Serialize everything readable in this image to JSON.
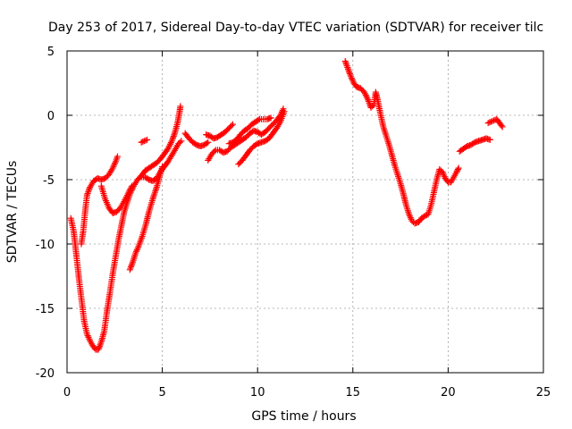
{
  "chart_data": {
    "type": "scatter",
    "title": "Day 253 of 2017, Sidereal Day-to-day VTEC variation (SDTVAR) for receiver tilc",
    "xlabel": "GPS time / hours",
    "ylabel": "SDTVAR / TECUs",
    "xlim": [
      0,
      25
    ],
    "ylim": [
      -20,
      5
    ],
    "xticks": [
      0,
      5,
      10,
      15,
      20,
      25
    ],
    "yticks": [
      -20,
      -15,
      -10,
      -5,
      0,
      5
    ],
    "grid": true,
    "marker": "+",
    "color": "#ff0000",
    "series": [
      {
        "points": [
          [
            0.2,
            -8
          ],
          [
            0.35,
            -9
          ],
          [
            0.5,
            -11
          ],
          [
            0.65,
            -13
          ],
          [
            0.8,
            -14.8
          ],
          [
            0.9,
            -16
          ],
          [
            1.05,
            -17
          ],
          [
            1.2,
            -17.5
          ],
          [
            1.35,
            -17.9
          ],
          [
            1.5,
            -18.2
          ],
          [
            1.65,
            -18.2
          ],
          [
            1.8,
            -17.6
          ],
          [
            1.95,
            -16.8
          ],
          [
            2.1,
            -15.2
          ],
          [
            2.25,
            -13.8
          ],
          [
            2.4,
            -12.3
          ],
          [
            2.55,
            -11
          ],
          [
            2.7,
            -9.7
          ],
          [
            2.85,
            -8.6
          ],
          [
            3,
            -7.5
          ],
          [
            3.15,
            -6.8
          ],
          [
            3.3,
            -6.1
          ],
          [
            3.5,
            -5.5
          ],
          [
            3.7,
            -5
          ],
          [
            3.9,
            -4.7
          ],
          [
            4.1,
            -4.3
          ],
          [
            4.3,
            -4.1
          ],
          [
            4.5,
            -3.9
          ],
          [
            4.7,
            -3.7
          ],
          [
            4.9,
            -3.4
          ],
          [
            5.1,
            -3
          ],
          [
            5.3,
            -2.6
          ],
          [
            5.5,
            -2
          ],
          [
            5.65,
            -1.4
          ],
          [
            5.8,
            -0.6
          ],
          [
            5.9,
            0.2
          ],
          [
            5.95,
            0.7
          ]
        ]
      },
      {
        "points": [
          [
            0.75,
            -10
          ],
          [
            0.85,
            -9
          ],
          [
            0.95,
            -7.5
          ],
          [
            1.05,
            -6.2
          ],
          [
            1.2,
            -5.6
          ],
          [
            1.4,
            -5.1
          ],
          [
            1.6,
            -4.9
          ],
          [
            1.8,
            -5
          ],
          [
            2,
            -4.9
          ],
          [
            2.2,
            -4.6
          ],
          [
            2.4,
            -4.1
          ],
          [
            2.55,
            -3.6
          ],
          [
            2.65,
            -3.2
          ]
        ]
      },
      {
        "points": [
          [
            1.8,
            -5.5
          ],
          [
            2,
            -6.5
          ],
          [
            2.2,
            -7.2
          ],
          [
            2.4,
            -7.6
          ],
          [
            2.6,
            -7.5
          ],
          [
            2.8,
            -7.2
          ],
          [
            3,
            -6.7
          ],
          [
            3.2,
            -6.1
          ],
          [
            3.4,
            -5.5
          ]
        ]
      },
      {
        "points": [
          [
            3.3,
            -12
          ],
          [
            3.45,
            -11.4
          ],
          [
            3.6,
            -10.7
          ],
          [
            3.75,
            -10.2
          ],
          [
            3.95,
            -9.4
          ],
          [
            4.15,
            -8.4
          ],
          [
            4.3,
            -7.5
          ],
          [
            4.5,
            -6.5
          ],
          [
            4.7,
            -5.6
          ],
          [
            4.85,
            -4.8
          ],
          [
            5,
            -4
          ]
        ]
      },
      {
        "points": [
          [
            3.9,
            -2.1
          ],
          [
            4.05,
            -2
          ],
          [
            4.2,
            -1.9
          ]
        ]
      },
      {
        "points": [
          [
            3.9,
            -4.8
          ],
          [
            4.1,
            -4.8
          ],
          [
            4.3,
            -5
          ],
          [
            4.5,
            -5.1
          ],
          [
            4.7,
            -4.9
          ],
          [
            4.9,
            -4.4
          ],
          [
            5.1,
            -4
          ],
          [
            5.3,
            -3.6
          ],
          [
            5.5,
            -3.1
          ],
          [
            5.7,
            -2.6
          ],
          [
            5.85,
            -2.2
          ],
          [
            6,
            -2
          ]
        ]
      },
      {
        "points": [
          [
            6.2,
            -1.4
          ],
          [
            6.4,
            -1.8
          ],
          [
            6.6,
            -2.1
          ],
          [
            6.8,
            -2.3
          ],
          [
            7,
            -2.4
          ],
          [
            7.2,
            -2.3
          ],
          [
            7.4,
            -2.1
          ]
        ]
      },
      {
        "points": [
          [
            7.4,
            -3.5
          ],
          [
            7.6,
            -3
          ],
          [
            7.8,
            -2.7
          ],
          [
            8,
            -2.7
          ],
          [
            8.2,
            -2.9
          ],
          [
            8.4,
            -2.8
          ],
          [
            8.6,
            -2.5
          ],
          [
            8.8,
            -2.3
          ],
          [
            9,
            -2.1
          ],
          [
            9.2,
            -1.9
          ],
          [
            9.4,
            -1.7
          ],
          [
            9.6,
            -1.4
          ],
          [
            9.8,
            -1.2
          ],
          [
            10,
            -1.3
          ],
          [
            10.2,
            -1.5
          ],
          [
            10.4,
            -1.3
          ],
          [
            10.6,
            -1
          ],
          [
            10.8,
            -0.7
          ],
          [
            11,
            -0.4
          ],
          [
            11.2,
            0
          ],
          [
            11.35,
            0.5
          ]
        ]
      },
      {
        "points": [
          [
            7.3,
            -1.5
          ],
          [
            7.5,
            -1.6
          ],
          [
            7.7,
            -1.8
          ],
          [
            7.9,
            -1.7
          ],
          [
            8.1,
            -1.5
          ],
          [
            8.3,
            -1.3
          ],
          [
            8.5,
            -1
          ],
          [
            8.7,
            -0.7
          ]
        ]
      },
      {
        "points": [
          [
            8.5,
            -2.2
          ],
          [
            8.7,
            -2.1
          ],
          [
            8.9,
            -1.9
          ],
          [
            9.1,
            -1.5
          ],
          [
            9.3,
            -1.2
          ],
          [
            9.5,
            -1
          ],
          [
            9.7,
            -0.7
          ],
          [
            9.9,
            -0.5
          ],
          [
            10.1,
            -0.3
          ],
          [
            10.3,
            -0.3
          ],
          [
            10.5,
            -0.3
          ],
          [
            10.7,
            -0.2
          ]
        ]
      },
      {
        "points": [
          [
            9,
            -3.8
          ],
          [
            9.2,
            -3.5
          ],
          [
            9.4,
            -3.1
          ],
          [
            9.6,
            -2.7
          ],
          [
            9.8,
            -2.4
          ],
          [
            10,
            -2.2
          ],
          [
            10.2,
            -2.1
          ],
          [
            10.4,
            -2
          ],
          [
            10.6,
            -1.8
          ],
          [
            10.8,
            -1.4
          ],
          [
            11,
            -1
          ],
          [
            11.2,
            -0.5
          ],
          [
            11.4,
            0.3
          ]
        ]
      },
      {
        "points": [
          [
            14.6,
            4.2
          ],
          [
            14.75,
            3.6
          ],
          [
            14.9,
            3
          ],
          [
            15.05,
            2.5
          ],
          [
            15.2,
            2.2
          ],
          [
            15.4,
            2.1
          ],
          [
            15.6,
            1.8
          ],
          [
            15.8,
            1.2
          ],
          [
            15.95,
            0.6
          ],
          [
            16.1,
            0.8
          ],
          [
            16.2,
            1.8
          ],
          [
            16.3,
            1.2
          ],
          [
            16.45,
            0.1
          ],
          [
            16.6,
            -0.9
          ],
          [
            16.75,
            -1.6
          ],
          [
            16.9,
            -2.3
          ],
          [
            17.05,
            -3.1
          ],
          [
            17.2,
            -3.9
          ],
          [
            17.35,
            -4.6
          ],
          [
            17.5,
            -5.3
          ],
          [
            17.65,
            -6.1
          ],
          [
            17.8,
            -7
          ],
          [
            17.95,
            -7.7
          ],
          [
            18.1,
            -8.2
          ],
          [
            18.25,
            -8.4
          ],
          [
            18.45,
            -8.3
          ],
          [
            18.6,
            -8
          ],
          [
            18.8,
            -7.8
          ],
          [
            18.95,
            -7.7
          ],
          [
            19.1,
            -7
          ],
          [
            19.25,
            -6
          ],
          [
            19.4,
            -5
          ],
          [
            19.55,
            -4.2
          ],
          [
            19.7,
            -4.4
          ],
          [
            19.85,
            -4.9
          ],
          [
            20,
            -5.2
          ],
          [
            20.15,
            -5.2
          ],
          [
            20.3,
            -4.8
          ],
          [
            20.45,
            -4.4
          ],
          [
            20.55,
            -4.1
          ]
        ]
      },
      {
        "points": [
          [
            20.6,
            -2.8
          ],
          [
            20.8,
            -2.6
          ],
          [
            21,
            -2.4
          ],
          [
            21.2,
            -2.3
          ],
          [
            21.4,
            -2.1
          ],
          [
            21.6,
            -2
          ],
          [
            21.8,
            -1.9
          ],
          [
            22,
            -1.8
          ],
          [
            22.2,
            -1.9
          ]
        ]
      },
      {
        "points": [
          [
            22.1,
            -0.6
          ],
          [
            22.25,
            -0.5
          ],
          [
            22.4,
            -0.4
          ],
          [
            22.55,
            -0.3
          ],
          [
            22.7,
            -0.6
          ],
          [
            22.85,
            -0.9
          ]
        ]
      }
    ]
  }
}
